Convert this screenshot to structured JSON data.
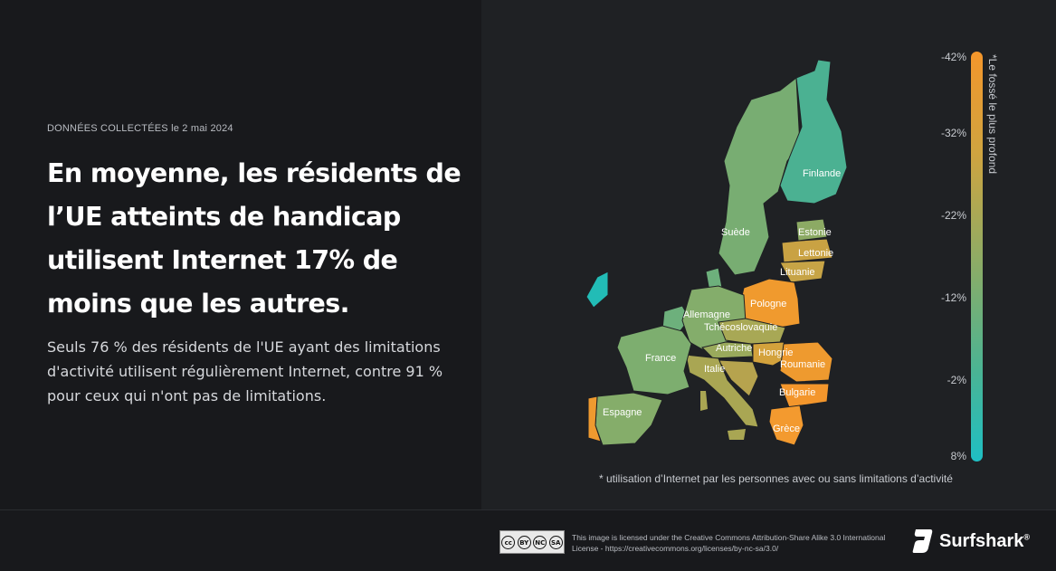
{
  "meta": {
    "label": "DONNÉES COLLECTÉES",
    "date": "le 2 mai 2024"
  },
  "headline": "En moyenne, les résidents de l’UE atteints de handicap utilisent Internet 17% de moins que les autres.",
  "body": "Seuls 76 % des résidents de l'UE ayant des limitations d'activité utilisent régulièrement Internet, contre 91 % pour ceux qui n'ont pas de limitations.",
  "map": {
    "countries": [
      {
        "name": "Finlande",
        "color": "#4bb192"
      },
      {
        "name": "Suède",
        "color": "#78ad72"
      },
      {
        "name": "Estonie",
        "color": "#8caa64"
      },
      {
        "name": "Lettonie",
        "color": "#c9a243"
      },
      {
        "name": "Lituanie",
        "color": "#c7a446"
      },
      {
        "name": "Pologne",
        "color": "#f09a2e"
      },
      {
        "name": "Allemagne",
        "color": "#84ad6b"
      },
      {
        "name": "Tchécoslovaquie",
        "color": "#a8a855"
      },
      {
        "name": "Autriche",
        "color": "#9aaa5c"
      },
      {
        "name": "Hongrie",
        "color": "#d3a23c"
      },
      {
        "name": "Roumanie",
        "color": "#ee9a2f"
      },
      {
        "name": "Bulgarie",
        "color": "#f3962c"
      },
      {
        "name": "Grèce",
        "color": "#f39a2f"
      },
      {
        "name": "Italie",
        "color": "#a9a653"
      },
      {
        "name": "France",
        "color": "#7dae6f"
      },
      {
        "name": "Espagne",
        "color": "#85ad6a"
      }
    ],
    "other_colors": {
      "ireland": "#22bcb6",
      "portugal": "#ef9a2f",
      "benelux": "#6db07c",
      "denmark": "#6db07c",
      "croatia": "#b6a34e",
      "slovenia": "#8eab62"
    }
  },
  "legend": {
    "title": "*Le fossé le plus profond",
    "ticks": [
      "-42%",
      "-32%",
      "-22%",
      "-12%",
      "-2%",
      "8%"
    ]
  },
  "footnote": "* utilisation d’Internet par les personnes avec ou sans limitations d’activité",
  "footer": {
    "cc_labels": [
      "cc",
      "BY",
      "NC",
      "SA"
    ],
    "license": "This image is licensed under the Creative Commons Attribution-Share Alike 3.0 International License - https://creativecommons.org/licenses/by-nc-sa/3.0/",
    "brand": "Surfshark",
    "brand_mark": "®"
  }
}
